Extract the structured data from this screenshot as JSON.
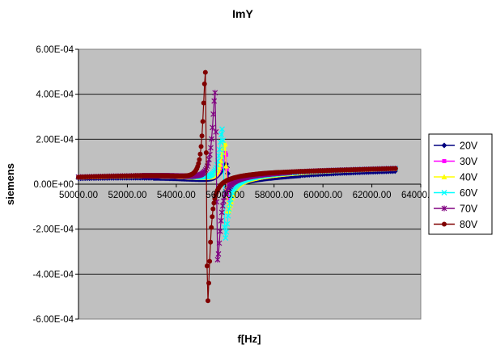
{
  "chart_data": {
    "type": "scatter",
    "title": "ImY",
    "xlabel": "f[Hz]",
    "ylabel": "siemens",
    "xlim": [
      50000,
      64000
    ],
    "ylim": [
      -0.0006,
      0.0006
    ],
    "x_ticks": [
      "50000.00",
      "52000.00",
      "54000.00",
      "56000.00",
      "58000.00",
      "60000.00",
      "62000.00",
      "64000.00"
    ],
    "y_ticks": [
      "6.00E-04",
      "4.00E-04",
      "2.00E-04",
      "0.00E+00",
      "-2.00E-04",
      "-4.00E-04",
      "-6.00E-04"
    ],
    "grid": "horizontal",
    "plot_background": "#c0c0c0",
    "legend_position": "right",
    "x_range": [
      50000,
      63000
    ],
    "series": [
      {
        "name": "20V",
        "color": "#000080",
        "marker": "diamond",
        "f0": 56050,
        "peak": 9e-05,
        "trough": -3e-05,
        "baseline": 6e-05,
        "width": 250
      },
      {
        "name": "30V",
        "color": "#ff00ff",
        "marker": "square",
        "f0": 56030,
        "peak": 0.00014,
        "trough": -8e-05,
        "baseline": 7e-05,
        "width": 200
      },
      {
        "name": "40V",
        "color": "#ffff00",
        "marker": "triangle",
        "f0": 56000,
        "peak": 0.00018,
        "trough": -0.00013,
        "baseline": 7e-05,
        "width": 180
      },
      {
        "name": "60V",
        "color": "#00ffff",
        "marker": "x",
        "f0": 55900,
        "peak": 0.00025,
        "trough": -0.00025,
        "baseline": 7e-05,
        "width": 150
      },
      {
        "name": "70V",
        "color": "#800080",
        "marker": "star",
        "f0": 55600,
        "peak": 0.00041,
        "trough": -0.00034,
        "baseline": 7e-05,
        "width": 140
      },
      {
        "name": "80V",
        "color": "#800000",
        "marker": "circle",
        "f0": 55200,
        "peak": 0.0005,
        "trough": -0.00054,
        "baseline": 7e-05,
        "width": 120
      }
    ]
  }
}
